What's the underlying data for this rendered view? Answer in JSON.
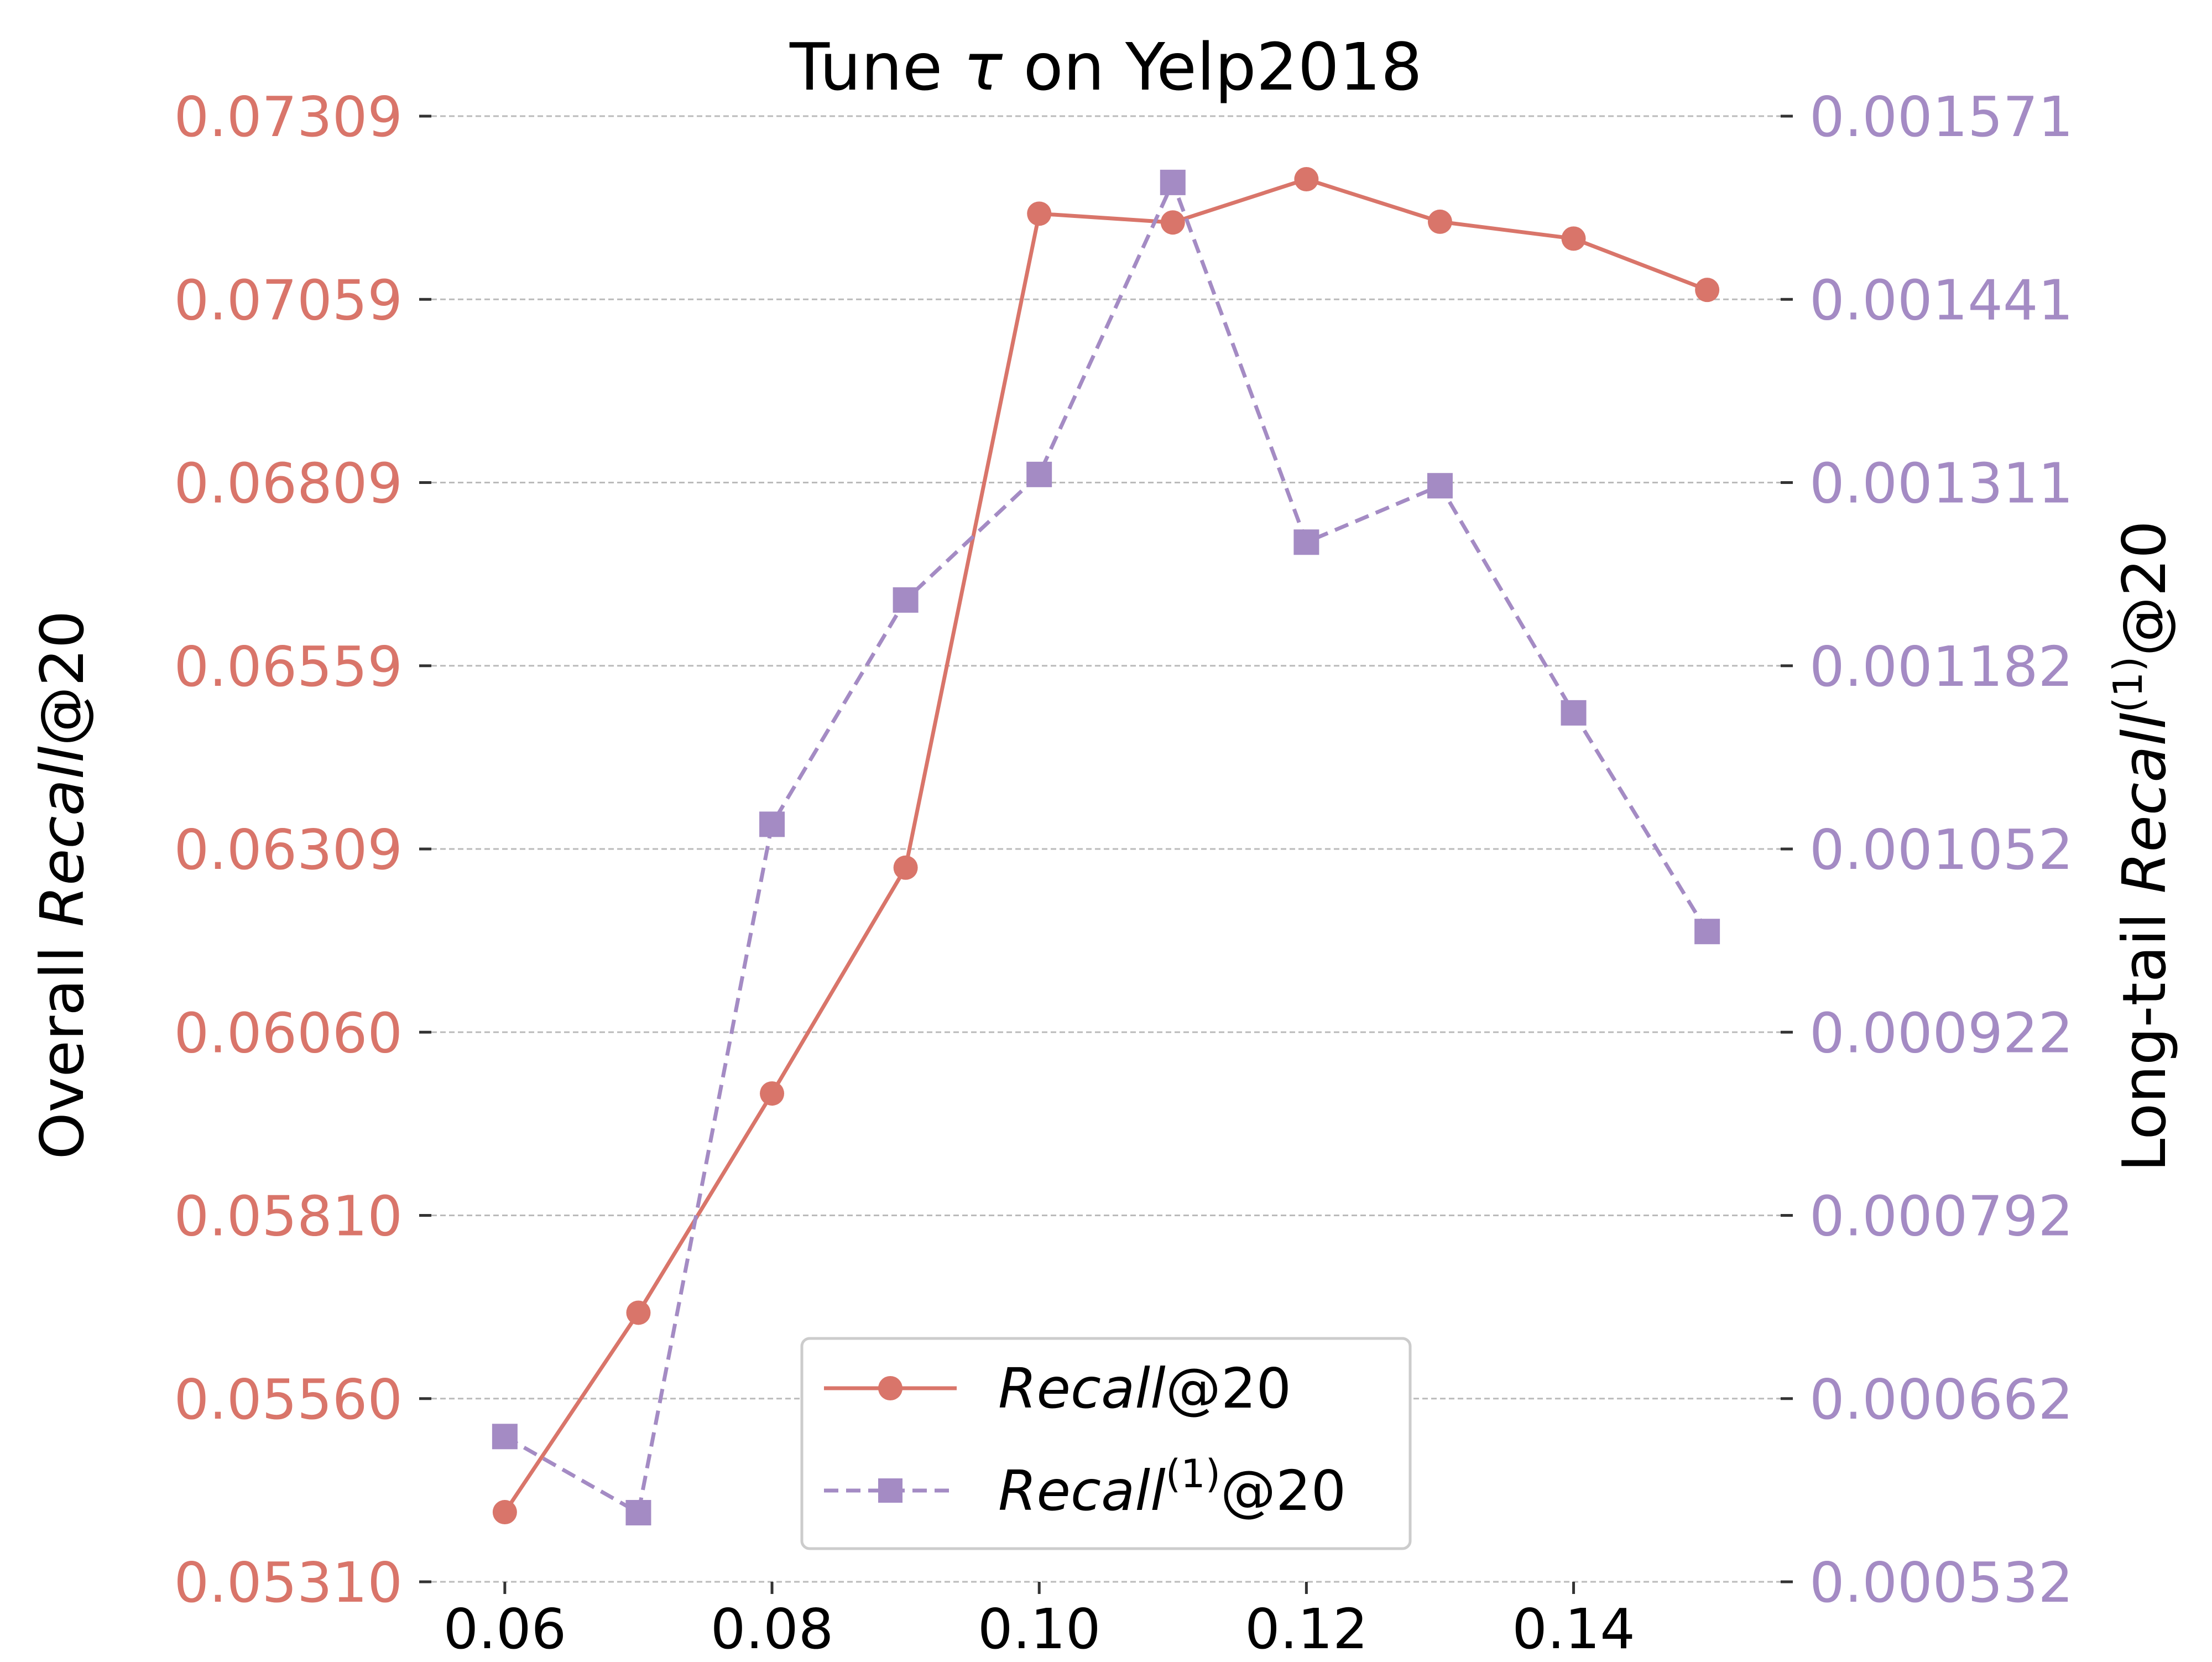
{
  "chart_data": {
    "type": "line",
    "title_prefix": "Tune ",
    "title_symbol": "τ",
    "title_suffix": " on Yelp2018",
    "x": [
      0.06,
      0.07,
      0.08,
      0.09,
      0.1,
      0.11,
      0.12,
      0.13,
      0.14,
      0.15
    ],
    "x_ticks": [
      "0.06",
      "0.08",
      "0.10",
      "0.12",
      "0.14"
    ],
    "x_tick_values": [
      0.06,
      0.08,
      0.1,
      0.12,
      0.14
    ],
    "xlim": [
      0.0545,
      0.1555
    ],
    "left_axis": {
      "label_prefix": "Overall  ",
      "label_italic": "Recall",
      "label_suffix": "@20",
      "ylim": [
        0.0531,
        0.07309
      ],
      "ticks": [
        "0.05310",
        "0.05560",
        "0.05810",
        "0.06060",
        "0.06309",
        "0.06559",
        "0.06809",
        "0.07059",
        "0.07309"
      ],
      "color": "#d9756a"
    },
    "right_axis": {
      "label_prefix": "Long-tail  ",
      "label_italic": "Recall",
      "label_sup": "(1)",
      "label_suffix": "@20",
      "ylim": [
        0.000532,
        0.001571
      ],
      "ticks": [
        "0.000532",
        "0.000662",
        "0.000792",
        "0.000922",
        "0.001052",
        "0.001182",
        "0.001311",
        "0.001441",
        "0.001571"
      ],
      "color": "#a48bc4"
    },
    "series": [
      {
        "name_italic": "Recall",
        "name_sup": "",
        "name_suffix": "@20",
        "axis": "left",
        "style": "solid",
        "marker": "circle",
        "color": "#d9756a",
        "values": [
          0.05405,
          0.05677,
          0.05976,
          0.06284,
          0.07176,
          0.07164,
          0.07223,
          0.07165,
          0.07142,
          0.07072
        ]
      },
      {
        "name_italic": "Recall",
        "name_sup": "(1)",
        "name_suffix": "@20",
        "axis": "right",
        "style": "dashed",
        "marker": "square",
        "color": "#a48bc4",
        "values": [
          0.000635,
          0.000581,
          0.001069,
          0.001228,
          0.001317,
          0.001524,
          0.001269,
          0.001309,
          0.001148,
          0.000993
        ]
      }
    ],
    "grid": "horizontal dashed",
    "legend_position": "bottom-center"
  }
}
